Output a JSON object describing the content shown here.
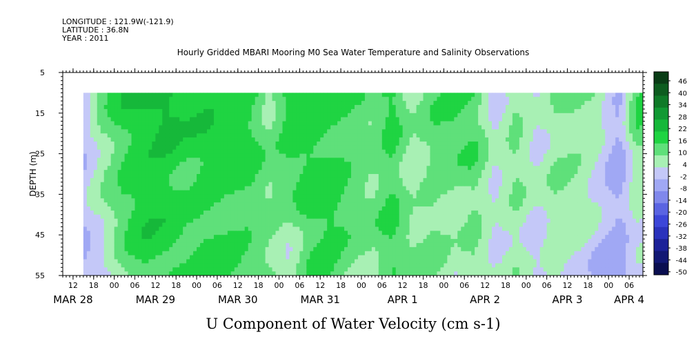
{
  "header": {
    "longitude": "LONGITUDE : 121.9W(-121.9)",
    "latitude": "LATITUDE : 36.8N",
    "year": "YEAR : 2011"
  },
  "chart_data": {
    "type": "heatmap",
    "title": "Hourly Gridded MBARI Mooring M0 Sea Water Temperature and Salinity Observations",
    "xlabel": "U Component of Water Velocity (cm s-1)",
    "ylabel": "DEPTH (m)",
    "y_axis": {
      "range": [
        5,
        55
      ],
      "inverted": true,
      "ticks": [
        5,
        15,
        25,
        35,
        45,
        55
      ],
      "data_depth_range": [
        10,
        55
      ]
    },
    "x_axis": {
      "start": "2011-03-28T09:00",
      "end": "2011-04-04T10:00",
      "data_start": "2011-03-28T15:00",
      "hour_ticks": [
        "2011-03-28T12:00",
        "2011-03-28T18:00",
        "2011-03-29T00:00",
        "2011-03-29T06:00",
        "2011-03-29T12:00",
        "2011-03-29T18:00",
        "2011-03-30T00:00",
        "2011-03-30T06:00",
        "2011-03-30T12:00",
        "2011-03-30T18:00",
        "2011-03-31T00:00",
        "2011-03-31T06:00",
        "2011-03-31T12:00",
        "2011-03-31T18:00",
        "2011-04-01T00:00",
        "2011-04-01T06:00",
        "2011-04-01T12:00",
        "2011-04-01T18:00",
        "2011-04-02T00:00",
        "2011-04-02T06:00",
        "2011-04-02T12:00",
        "2011-04-02T18:00",
        "2011-04-03T00:00",
        "2011-04-03T06:00",
        "2011-04-03T12:00",
        "2011-04-03T18:00",
        "2011-04-04T00:00",
        "2011-04-04T06:00"
      ],
      "hour_tick_labels": [
        "12",
        "18",
        "00",
        "06",
        "12",
        "18",
        "00",
        "06",
        "12",
        "18",
        "00",
        "06",
        "12",
        "18",
        "00",
        "06",
        "12",
        "18",
        "00",
        "06",
        "12",
        "18",
        "00",
        "06",
        "12",
        "18",
        "00",
        "06"
      ],
      "day_labels": [
        {
          "label": "MAR 28",
          "at": "2011-03-28T12:00"
        },
        {
          "label": "MAR 29",
          "at": "2011-03-29T12:00"
        },
        {
          "label": "MAR 30",
          "at": "2011-03-30T12:00"
        },
        {
          "label": "MAR 31",
          "at": "2011-03-31T12:00"
        },
        {
          "label": "APR  1",
          "at": "2011-04-01T12:00"
        },
        {
          "label": "APR  2",
          "at": "2011-04-02T12:00"
        },
        {
          "label": "APR  3",
          "at": "2011-04-03T12:00"
        },
        {
          "label": "APR  4",
          "at": "2011-04-04T06:00"
        }
      ]
    },
    "colorbar": {
      "levels": [
        46,
        40,
        34,
        28,
        22,
        16,
        10,
        4,
        -2,
        -8,
        -14,
        -20,
        -26,
        -32,
        -38,
        -44,
        -50
      ],
      "labels": [
        "46",
        "40",
        "34",
        "28",
        "22",
        "16",
        "10",
        "4",
        "-2",
        "-8",
        "-14",
        "-20",
        "-26",
        "-32",
        "-38",
        "-44",
        "-50"
      ],
      "colors": [
        "#0a3d16",
        "#0d5c1f",
        "#0f7a28",
        "#119933",
        "#16b83a",
        "#1fd442",
        "#5fe07a",
        "#a8f0b4",
        "#c4c8f8",
        "#a0a8f4",
        "#8088ec",
        "#5a64e2",
        "#3c46d8",
        "#2a32bc",
        "#1c2298",
        "#121874",
        "#0a0e50"
      ]
    },
    "time_profile": [
      {
        "t": "2011-03-28T15:00",
        "u_surface": -6,
        "u_deep": -8
      },
      {
        "t": "2011-03-28T21:00",
        "u_surface": 8,
        "u_deep": -4
      },
      {
        "t": "2011-03-29T03:00",
        "u_surface": 14,
        "u_deep": 6
      },
      {
        "t": "2011-03-29T09:00",
        "u_surface": 16,
        "u_deep": 12
      },
      {
        "t": "2011-03-29T15:00",
        "u_surface": 18,
        "u_deep": 10
      },
      {
        "t": "2011-03-29T21:00",
        "u_surface": 14,
        "u_deep": 8
      },
      {
        "t": "2011-03-30T03:00",
        "u_surface": 14,
        "u_deep": 10
      },
      {
        "t": "2011-03-30T09:00",
        "u_surface": 12,
        "u_deep": 10
      },
      {
        "t": "2011-03-30T15:00",
        "u_surface": 14,
        "u_deep": 8
      },
      {
        "t": "2011-03-30T21:00",
        "u_surface": 4,
        "u_deep": 6
      },
      {
        "t": "2011-03-31T03:00",
        "u_surface": 16,
        "u_deep": -2
      },
      {
        "t": "2011-03-31T09:00",
        "u_surface": 14,
        "u_deep": 10
      },
      {
        "t": "2011-03-31T15:00",
        "u_surface": 12,
        "u_deep": 12
      },
      {
        "t": "2011-03-31T21:00",
        "u_surface": 10,
        "u_deep": 6
      },
      {
        "t": "2011-04-01T03:00",
        "u_surface": 6,
        "u_deep": 4
      },
      {
        "t": "2011-04-01T09:00",
        "u_surface": 12,
        "u_deep": 10
      },
      {
        "t": "2011-04-01T15:00",
        "u_surface": 0,
        "u_deep": 4
      },
      {
        "t": "2011-04-01T21:00",
        "u_surface": 8,
        "u_deep": 4
      },
      {
        "t": "2011-04-02T03:00",
        "u_surface": 12,
        "u_deep": -2
      },
      {
        "t": "2011-04-02T09:00",
        "u_surface": 10,
        "u_deep": 4
      },
      {
        "t": "2011-04-02T15:00",
        "u_surface": -4,
        "u_deep": -2
      },
      {
        "t": "2011-04-02T21:00",
        "u_surface": 6,
        "u_deep": 2
      },
      {
        "t": "2011-04-03T03:00",
        "u_surface": -2,
        "u_deep": -4
      },
      {
        "t": "2011-04-03T09:00",
        "u_surface": 4,
        "u_deep": 2
      },
      {
        "t": "2011-04-03T15:00",
        "u_surface": 6,
        "u_deep": -2
      },
      {
        "t": "2011-04-03T21:00",
        "u_surface": 2,
        "u_deep": -8
      },
      {
        "t": "2011-04-04T03:00",
        "u_surface": -10,
        "u_deep": -12
      },
      {
        "t": "2011-04-04T08:00",
        "u_surface": 10,
        "u_deep": -6
      }
    ]
  }
}
